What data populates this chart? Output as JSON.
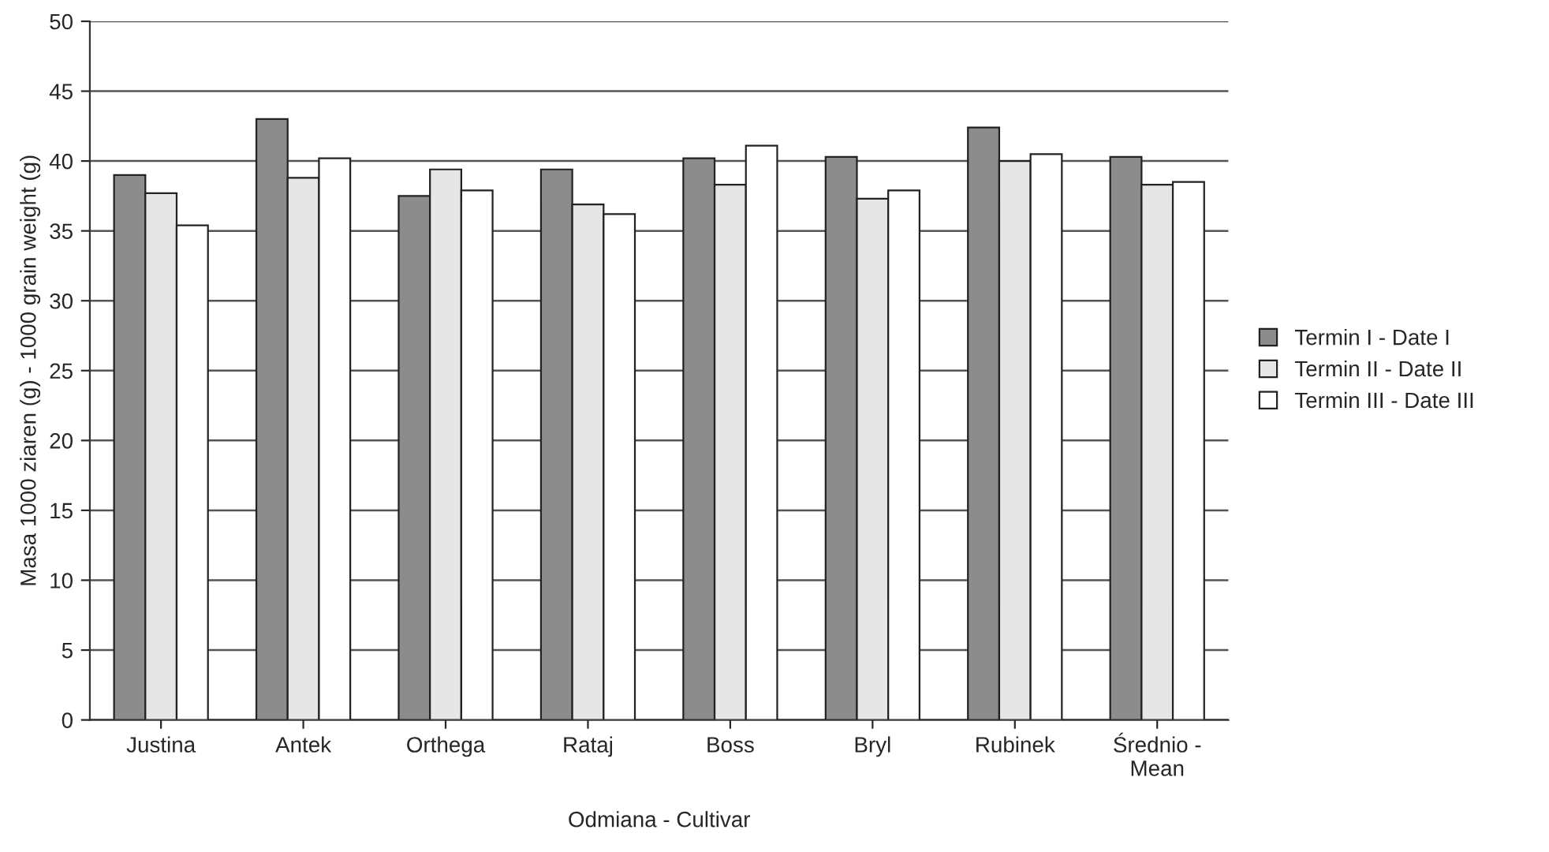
{
  "chart_data": {
    "type": "bar",
    "xlabel": "Odmiana - Cultivar",
    "ylabel": "Masa 1000 ziaren (g) - 1000 grain weight (g)",
    "categories": [
      "Justina",
      "Antek",
      "Orthega",
      "Rataj",
      "Boss",
      "Bryl",
      "Rubinek",
      "Średnio -\nMean"
    ],
    "series": [
      {
        "name": "Termin I - Date I",
        "color": "#8c8c8c",
        "values": [
          39.0,
          43.0,
          37.5,
          39.4,
          40.2,
          40.3,
          42.4,
          40.3
        ]
      },
      {
        "name": "Termin II - Date II",
        "color": "#e6e6e6",
        "values": [
          37.7,
          38.8,
          39.4,
          36.9,
          38.3,
          37.3,
          40.0,
          38.3
        ]
      },
      {
        "name": "Termin III - Date III",
        "color": "#ffffff",
        "values": [
          35.4,
          40.2,
          37.9,
          36.2,
          41.1,
          37.9,
          40.5,
          38.5
        ]
      }
    ],
    "ylim": [
      0,
      50
    ],
    "yticks": [
      0,
      5,
      10,
      15,
      20,
      25,
      30,
      35,
      40,
      45,
      50
    ],
    "grid": "y",
    "legend": "right"
  }
}
